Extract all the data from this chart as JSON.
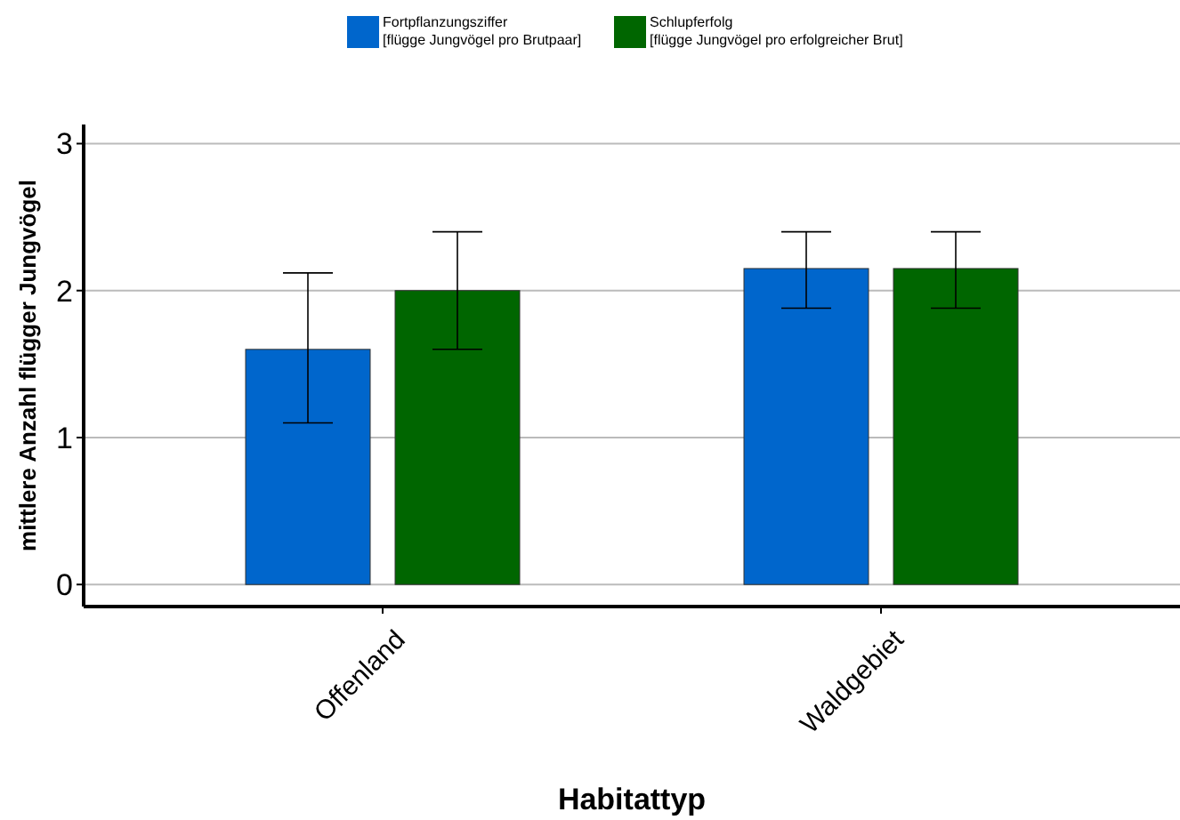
{
  "chart_data": {
    "type": "bar",
    "xlabel": "Habitattyp",
    "ylabel": "mittlere Anzahl flügger Jungvögel",
    "categories": [
      "Offenland",
      "Waldgebiet"
    ],
    "series": [
      {
        "name": "Fortpflanzungsziffer\n[flügge Jungvögel pro Brutpaar]",
        "color": "#0066cc",
        "values": [
          1.6,
          2.15
        ],
        "errors": [
          [
            1.1,
            2.12
          ],
          [
            1.88,
            2.4
          ]
        ]
      },
      {
        "name": "Schlupferfolg\n[flügge Jungvögel pro erfolgreicher Brut]",
        "color": "#006600",
        "values": [
          2.0,
          2.15
        ],
        "errors": [
          [
            1.6,
            2.4
          ],
          [
            1.88,
            2.4
          ]
        ]
      }
    ],
    "ylim": [
      -0.15,
      3.13
    ],
    "yticks": [
      0,
      1,
      2,
      3
    ],
    "grid": "y",
    "legend": "top"
  }
}
